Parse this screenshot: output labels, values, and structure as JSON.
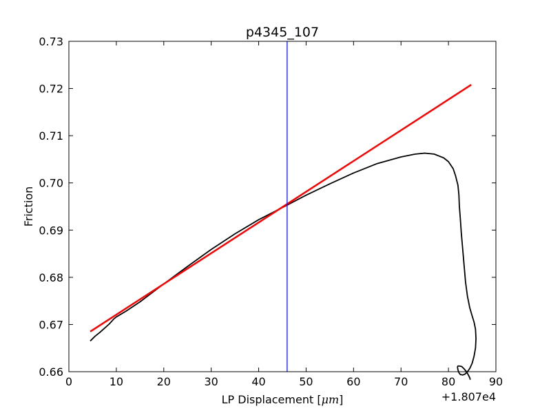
{
  "chart_data": {
    "type": "line",
    "title": "p4345_107",
    "xlabel_prefix": "LP Displacement [",
    "xlabel_math": "μm",
    "xlabel_suffix": "]",
    "ylabel": "Friction",
    "x_offset_label": "+1.807e4",
    "xlim": [
      0,
      90
    ],
    "ylim": [
      0.66,
      0.73
    ],
    "xticks": [
      0,
      10,
      20,
      30,
      40,
      50,
      60,
      70,
      80,
      90
    ],
    "yticks": [
      0.66,
      0.67,
      0.68,
      0.69,
      0.7,
      0.71,
      0.72,
      0.73
    ],
    "xtick_labels": [
      "0",
      "10",
      "20",
      "30",
      "40",
      "50",
      "60",
      "70",
      "80",
      "90"
    ],
    "ytick_labels": [
      "0.66",
      "0.67",
      "0.68",
      "0.69",
      "0.70",
      "0.71",
      "0.72",
      "0.73"
    ],
    "grid": false,
    "series": [
      {
        "kind": "data",
        "color": "#000000",
        "x": [
          4.5,
          5.5,
          6.5,
          7.5,
          8.5,
          9.5,
          10,
          12,
          15,
          20,
          25,
          30,
          35,
          40,
          46,
          50,
          55,
          60,
          65,
          70,
          73,
          75,
          77,
          79,
          80,
          81,
          81.5,
          82,
          82.2,
          82.3,
          82.5,
          82.7,
          83,
          83.3,
          83.6,
          84,
          84.5,
          85,
          85.4,
          85.7,
          85.8,
          85.7,
          85.4,
          85,
          84.5,
          84,
          83.5,
          83,
          82.5,
          82.2,
          82.0,
          81.9,
          82.0,
          82.3,
          82.8,
          83.3,
          83.8,
          84.2,
          84.5,
          84.6
        ],
        "y": [
          0.6665,
          0.6675,
          0.6683,
          0.6692,
          0.6701,
          0.6712,
          0.6716,
          0.6728,
          0.6748,
          0.6786,
          0.6823,
          0.6859,
          0.6892,
          0.6922,
          0.6953,
          0.6974,
          0.6998,
          0.7021,
          0.7041,
          0.7055,
          0.7061,
          0.7063,
          0.7061,
          0.7053,
          0.7045,
          0.703,
          0.7015,
          0.6995,
          0.6975,
          0.695,
          0.6925,
          0.6895,
          0.686,
          0.6825,
          0.679,
          0.676,
          0.6735,
          0.6718,
          0.6705,
          0.669,
          0.667,
          0.665,
          0.6633,
          0.6618,
          0.6607,
          0.66,
          0.6595,
          0.6593,
          0.6594,
          0.6598,
          0.6604,
          0.661,
          0.6612,
          0.6612,
          0.6611,
          0.6606,
          0.66,
          0.6593,
          0.6587,
          0.6583
        ]
      },
      {
        "kind": "fit",
        "color": "#ff0000",
        "x": [
          4.5,
          84.8
        ],
        "y": [
          0.6685,
          0.7208
        ]
      },
      {
        "kind": "marker",
        "color": "#0000ff",
        "x": [
          46,
          46
        ],
        "y": [
          0.66,
          0.73
        ]
      }
    ]
  }
}
